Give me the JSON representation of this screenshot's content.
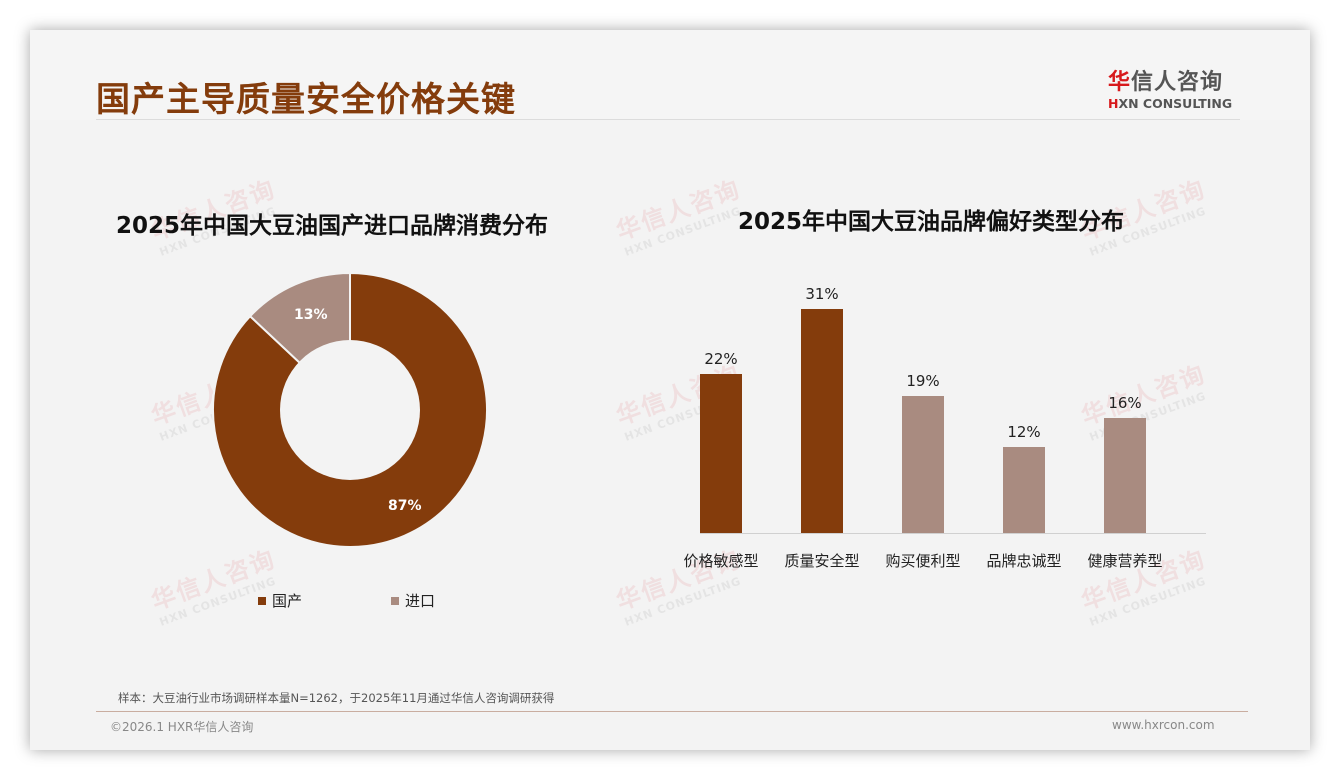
{
  "page": {
    "title": "国产主导质量安全价格关键",
    "logo_cn_hua": "华",
    "logo_cn_rest": "信人咨询",
    "logo_en_h": "H",
    "logo_en_rest": "XN CONSULTING",
    "watermark_cn": "华信人咨询",
    "watermark_en": "HXN CONSULTING"
  },
  "colors": {
    "accent": "#843c0c",
    "secondary": "#a98b80",
    "background": "#f3f3f3"
  },
  "chart_data": [
    {
      "type": "pie",
      "variant": "donut",
      "title": "2025年中国大豆油国产进口品牌消费分布",
      "categories": [
        "国产",
        "进口"
      ],
      "values": [
        87,
        13
      ],
      "labels": [
        "87%",
        "13%"
      ],
      "colors": [
        "#843c0c",
        "#a98b80"
      ],
      "legend_position": "bottom"
    },
    {
      "type": "bar",
      "title": "2025年中国大豆油品牌偏好类型分布",
      "categories": [
        "价格敏感型",
        "质量安全型",
        "购买便利型",
        "品牌忠诚型",
        "健康营养型"
      ],
      "values": [
        22,
        31,
        19,
        12,
        16
      ],
      "labels": [
        "22%",
        "31%",
        "19%",
        "12%",
        "16%"
      ],
      "colors": [
        "#843c0c",
        "#843c0c",
        "#a98b80",
        "#a98b80",
        "#a98b80"
      ],
      "xlabel": "",
      "ylabel": "",
      "grid": false,
      "ylim": [
        0,
        35
      ]
    }
  ],
  "footer": {
    "note": "样本：大豆油行业市场调研样本量N=1262，于2025年11月通过华信人咨询调研获得",
    "copyright": "©2026.1 HXR华信人咨询",
    "website": "www.hxrcon.com"
  }
}
